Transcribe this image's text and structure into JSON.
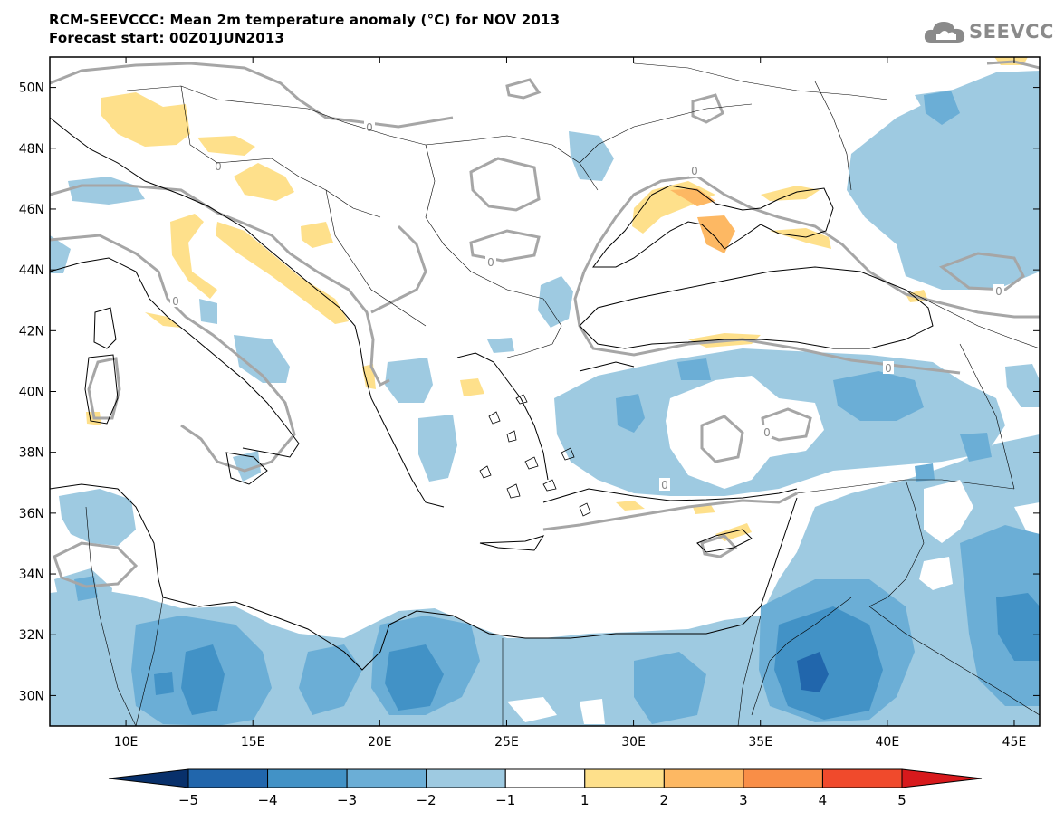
{
  "header": {
    "title": "RCM-SEEVCCC: Mean 2m temperature anomaly (°C) for NOV 2013",
    "subtitle": "Forecast start: 00Z01JUN2013"
  },
  "logo": {
    "text": "SEEVCCC",
    "icon": "cloud-icon"
  },
  "map": {
    "lon_range": [
      7,
      46
    ],
    "lat_range": [
      29,
      51
    ],
    "lon_ticks": [
      "10E",
      "15E",
      "20E",
      "25E",
      "30E",
      "35E",
      "40E",
      "45E"
    ],
    "lat_ticks": [
      "50N",
      "48N",
      "46N",
      "44N",
      "42N",
      "40N",
      "38N",
      "36N",
      "34N",
      "32N",
      "30N"
    ],
    "contour_label": "0"
  },
  "colorbar": {
    "labels": [
      "−5",
      "−4",
      "−3",
      "−2",
      "−1",
      "1",
      "2",
      "3",
      "4",
      "5"
    ],
    "colors": [
      "#08306b",
      "#2166ac",
      "#4292c6",
      "#6baed6",
      "#9ecae1",
      "#ffffff",
      "#fee08b",
      "#fdb863",
      "#f98e47",
      "#f04a2c",
      "#d7191c"
    ]
  }
}
